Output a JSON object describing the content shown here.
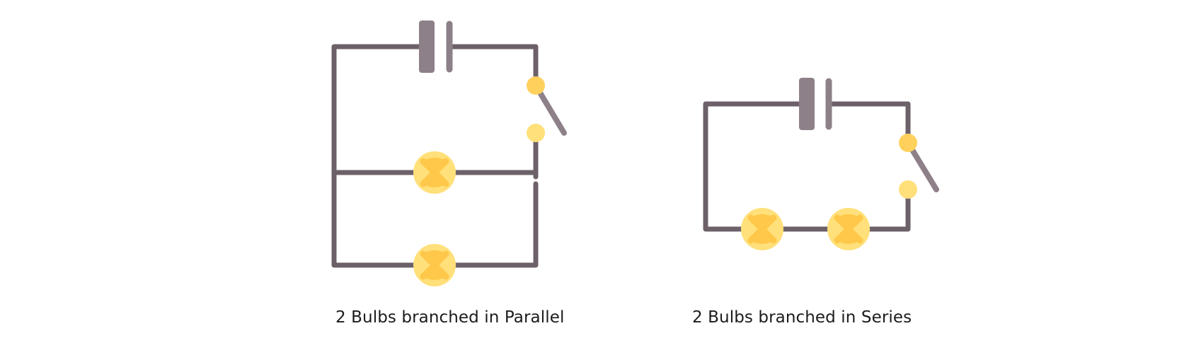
{
  "captions": {
    "parallel": "2 Bulbs branched in Parallel",
    "series": "2 Bulbs branched in Series"
  },
  "colors": {
    "wire": "#6d6169",
    "battery": "#8e8089",
    "switch_lever": "#8e8089",
    "switch_contact_top": "#ffd15c",
    "switch_contact_bottom": "#ffe07a",
    "bulb_light": "#ffe07a",
    "bulb_dark": "#ffc84a"
  },
  "icons": {
    "battery": "battery-icon",
    "bulb": "light-bulb-icon",
    "switch": "switch-icon"
  }
}
